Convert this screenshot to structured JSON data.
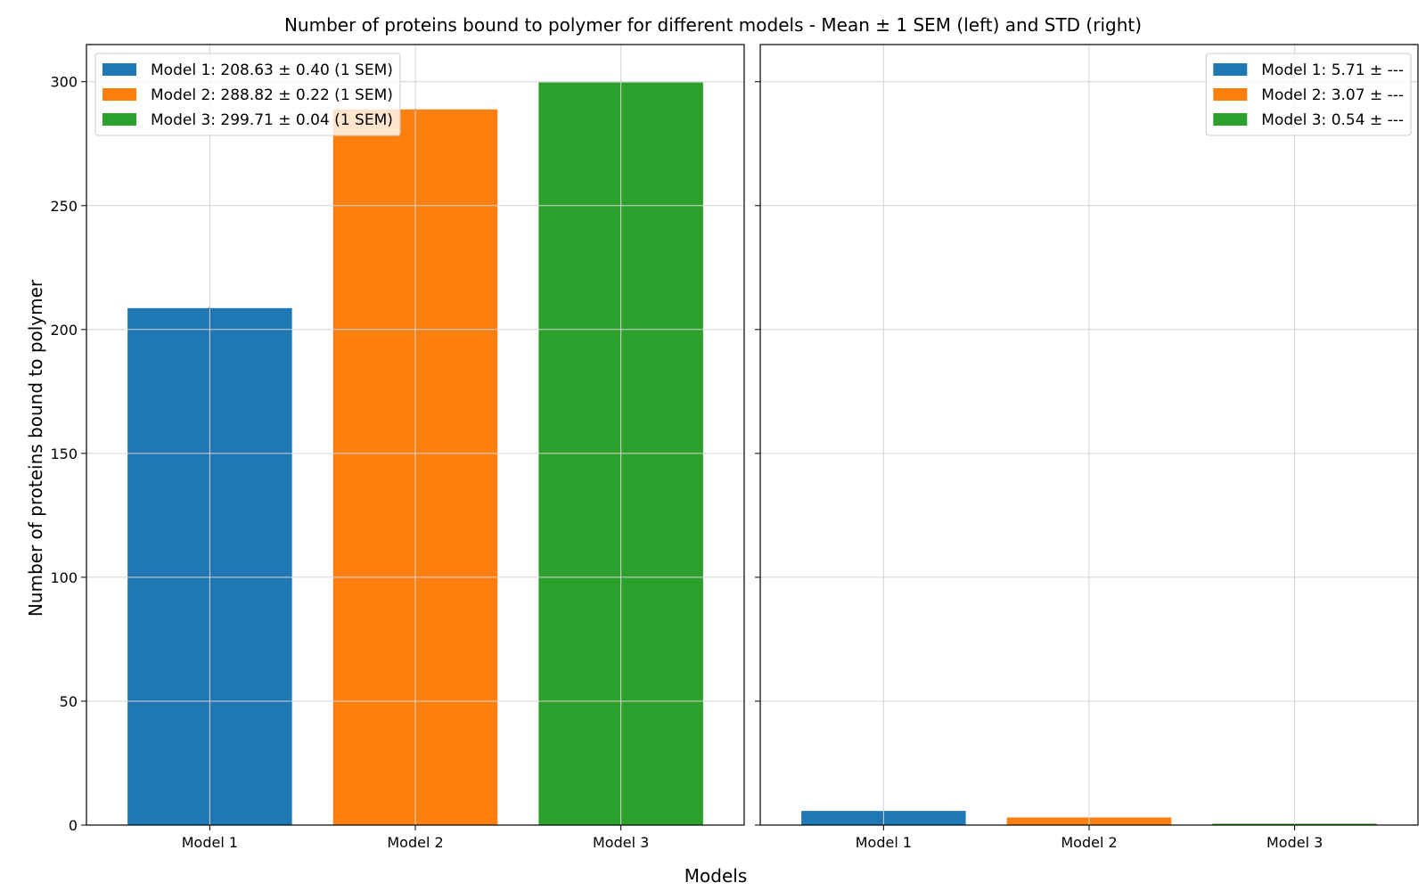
{
  "chart_data": {
    "type": "bar",
    "title": "Number of proteins bound to polymer for different models - Mean ± 1 SEM (left) and STD (right)",
    "xlabel": "Models",
    "ylabel": "Number of proteins bound to polymer",
    "ylim": [
      0,
      315
    ],
    "yticks": [
      "0",
      "50",
      "100",
      "150",
      "200",
      "250",
      "300"
    ],
    "ytick_values": [
      0,
      50,
      100,
      150,
      200,
      250,
      300
    ],
    "categories": [
      "Model 1",
      "Model 2",
      "Model 3"
    ],
    "colors": [
      "#1f77b4",
      "#ff7f0e",
      "#2ca02c"
    ],
    "grid": true,
    "shared_y": true,
    "panels": [
      {
        "name": "mean",
        "values": [
          208.63,
          288.82,
          299.71
        ],
        "errors": [
          0.4,
          0.22,
          0.04
        ],
        "legend_position": "top-left",
        "legend": [
          "Model 1: 208.63 ± 0.40 (1 SEM)",
          "Model 2: 288.82 ± 0.22 (1 SEM)",
          "Model 3: 299.71 ± 0.04 (1 SEM)"
        ]
      },
      {
        "name": "std",
        "values": [
          5.71,
          3.07,
          0.54
        ],
        "legend_position": "top-right",
        "legend": [
          "Model 1: 5.71 ± ---",
          "Model 2: 3.07 ± ---",
          "Model 3: 0.54 ± ---"
        ]
      }
    ]
  }
}
